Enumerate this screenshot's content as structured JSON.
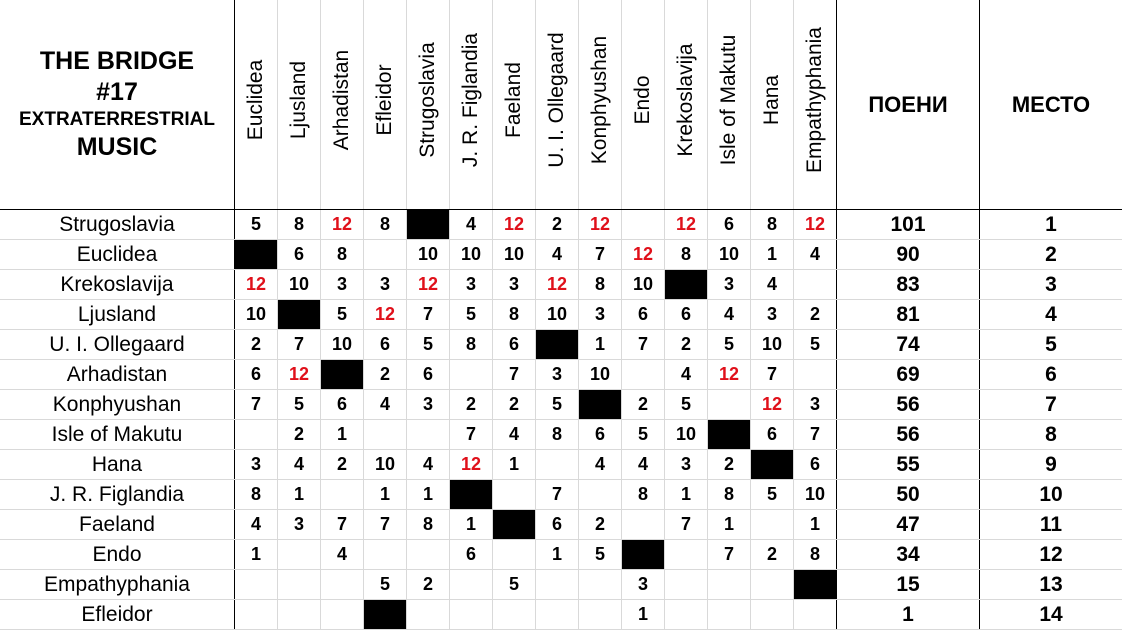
{
  "title": {
    "line1": "THE BRIDGE",
    "line2": "#17",
    "line3": "EXTRATERRESTRIAL",
    "line4": "MUSIC"
  },
  "voters": [
    "Euclidea",
    "Ljusland",
    "Arhadistan",
    "Efleidor",
    "Strugoslavia",
    "J. R. Figlandia",
    "Faeland",
    "U. I. Ollegaard",
    "Konphyushan",
    "Endo",
    "Krekoslavija",
    "Isle of Makutu",
    "Hana",
    "Empathyphania"
  ],
  "headers": {
    "points": "ПОЕНИ",
    "place": "МЕСТО"
  },
  "colors": {
    "max_points": "#e0101a",
    "self_vote": "#000000"
  },
  "rows": [
    {
      "country": "Strugoslavia",
      "points": [
        "5",
        "8",
        "12",
        "8",
        "X",
        "4",
        "12",
        "2",
        "12",
        "",
        "12",
        "6",
        "8",
        "12"
      ],
      "total": "101",
      "place": "1"
    },
    {
      "country": "Euclidea",
      "points": [
        "X",
        "6",
        "8",
        "",
        "10",
        "10",
        "10",
        "4",
        "7",
        "12",
        "8",
        "10",
        "1",
        "4"
      ],
      "total": "90",
      "place": "2"
    },
    {
      "country": "Krekoslavija",
      "points": [
        "12",
        "10",
        "3",
        "3",
        "12",
        "3",
        "3",
        "12",
        "8",
        "10",
        "X",
        "3",
        "4",
        ""
      ],
      "total": "83",
      "place": "3"
    },
    {
      "country": "Ljusland",
      "points": [
        "10",
        "X",
        "5",
        "12",
        "7",
        "5",
        "8",
        "10",
        "3",
        "6",
        "6",
        "4",
        "3",
        "2"
      ],
      "total": "81",
      "place": "4"
    },
    {
      "country": "U. I. Ollegaard",
      "points": [
        "2",
        "7",
        "10",
        "6",
        "5",
        "8",
        "6",
        "X",
        "1",
        "7",
        "2",
        "5",
        "10",
        "5"
      ],
      "total": "74",
      "place": "5"
    },
    {
      "country": "Arhadistan",
      "points": [
        "6",
        "12",
        "X",
        "2",
        "6",
        "",
        "7",
        "3",
        "10",
        "",
        "4",
        "12",
        "7",
        ""
      ],
      "total": "69",
      "place": "6"
    },
    {
      "country": "Konphyushan",
      "points": [
        "7",
        "5",
        "6",
        "4",
        "3",
        "2",
        "2",
        "5",
        "X",
        "2",
        "5",
        "",
        "12",
        "3"
      ],
      "total": "56",
      "place": "7"
    },
    {
      "country": "Isle of Makutu",
      "points": [
        "",
        "2",
        "1",
        "",
        "",
        "7",
        "4",
        "8",
        "6",
        "5",
        "10",
        "X",
        "6",
        "7"
      ],
      "total": "56",
      "place": "8"
    },
    {
      "country": "Hana",
      "points": [
        "3",
        "4",
        "2",
        "10",
        "4",
        "12",
        "1",
        "",
        "4",
        "4",
        "3",
        "2",
        "X",
        "6"
      ],
      "total": "55",
      "place": "9"
    },
    {
      "country": "J. R. Figlandia",
      "points": [
        "8",
        "1",
        "",
        "1",
        "1",
        "X",
        "",
        "7",
        "",
        "8",
        "1",
        "8",
        "5",
        "10"
      ],
      "total": "50",
      "place": "10"
    },
    {
      "country": "Faeland",
      "points": [
        "4",
        "3",
        "7",
        "7",
        "8",
        "1",
        "X",
        "6",
        "2",
        "",
        "7",
        "1",
        "",
        "1"
      ],
      "total": "47",
      "place": "11"
    },
    {
      "country": "Endo",
      "points": [
        "1",
        "",
        "4",
        "",
        "",
        "6",
        "",
        "1",
        "5",
        "X",
        "",
        "7",
        "2",
        "8"
      ],
      "total": "34",
      "place": "12"
    },
    {
      "country": "Empathyphania",
      "points": [
        "",
        "",
        "",
        "5",
        "2",
        "",
        "5",
        "",
        "",
        "3",
        "",
        "",
        "",
        "X"
      ],
      "total": "15",
      "place": "13"
    },
    {
      "country": "Efleidor",
      "points": [
        "",
        "",
        "",
        "X",
        "",
        "",
        "",
        "",
        "",
        "1",
        "",
        "",
        "",
        ""
      ],
      "total": "1",
      "place": "14"
    }
  ]
}
